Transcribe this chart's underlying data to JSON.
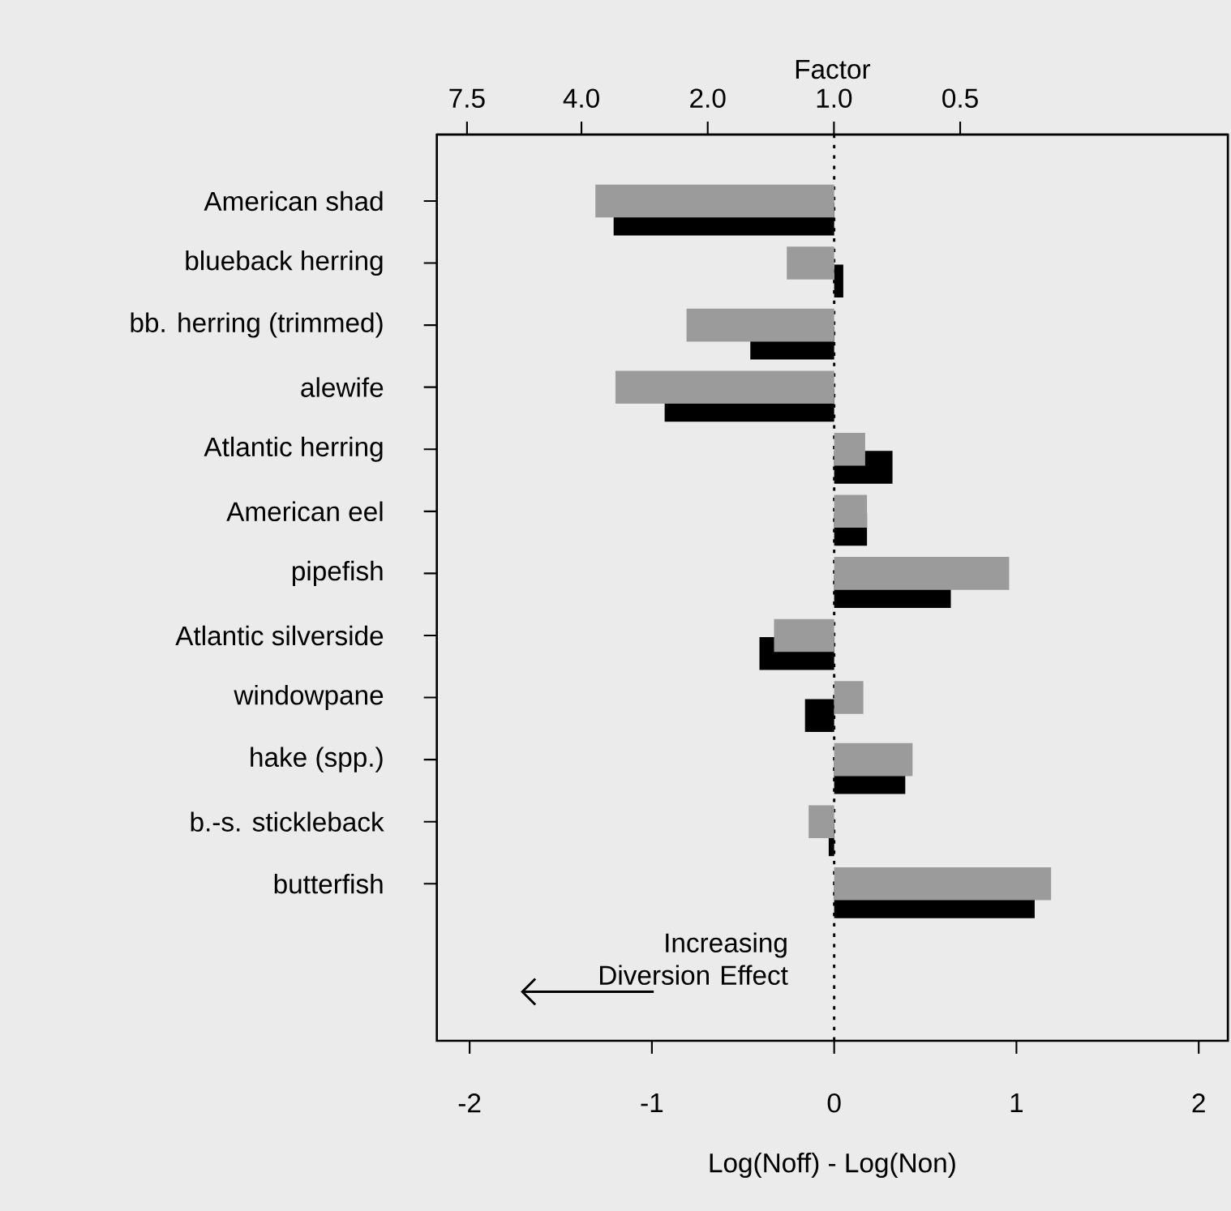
{
  "chart_data": {
    "type": "bar",
    "orientation": "horizontal",
    "categories": [
      "American shad",
      "blueback herring",
      "bb. herring (trimmed)",
      "alewife",
      "Atlantic herring",
      "American eel",
      "pipefish",
      "Atlantic silverside",
      "windowpane",
      "hake (spp.)",
      "b.-s. stickleback",
      "butterfish"
    ],
    "series": [
      {
        "color": "#000000",
        "values": [
          -1.21,
          0.05,
          -0.46,
          -0.93,
          0.32,
          0.18,
          0.64,
          -0.41,
          -0.16,
          0.39,
          -0.03,
          1.1
        ]
      },
      {
        "color": "#9b9b9b",
        "values": [
          -1.31,
          -0.26,
          -0.81,
          -1.2,
          0.17,
          0.18,
          0.96,
          -0.33,
          0.16,
          0.43,
          -0.14,
          1.19
        ]
      }
    ],
    "xlim": [
      -2.18,
      2.16
    ],
    "xticks": [
      -2,
      -1,
      0,
      1,
      2
    ],
    "xlabel": "Log(Noff) - Log(Non)",
    "x2label": "Factor",
    "log": "x2",
    "x2lim": [
      8.85,
      0.115
    ],
    "x2ticks": [
      {
        "value": 7.5,
        "label": "7.5"
      },
      {
        "value": 4.0,
        "label": "4.0"
      },
      {
        "value": 2.0,
        "label": "2.0"
      },
      {
        "value": 1.0,
        "label": "1.0"
      },
      {
        "value": 0.5,
        "label": "0.5"
      }
    ],
    "ref_lines": [
      {
        "axis": "x",
        "value": 0,
        "line_style": "dotted",
        "color": "#000000"
      }
    ],
    "annotations": [
      "Increasing Diversion Effect"
    ]
  }
}
